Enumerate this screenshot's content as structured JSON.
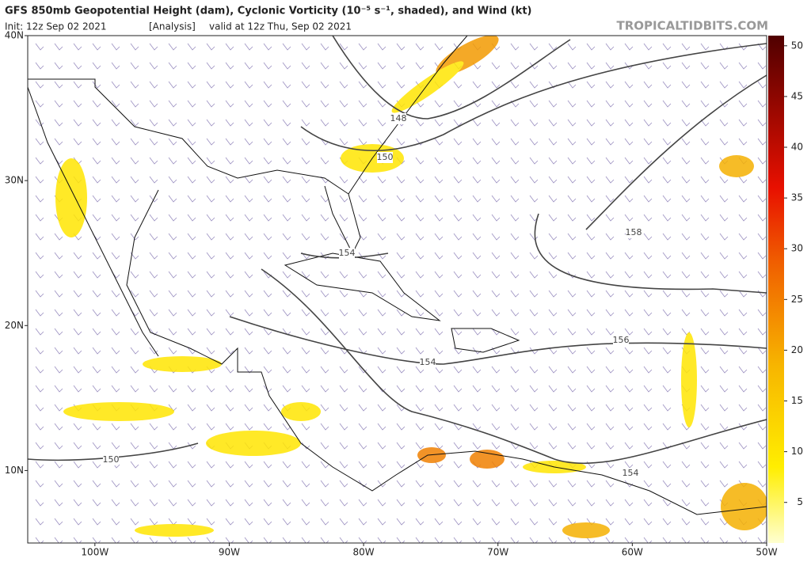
{
  "header": {
    "title": "GFS 850mb Geopotential Height (dam), Cyclonic Vorticity (10⁻⁵ s⁻¹, shaded), and Wind (kt)",
    "init": "Init: 12z Sep 02 2021",
    "run": "[Analysis]",
    "valid": "valid at 12z Thu, Sep 02 2021",
    "watermark": "TROPICALTIDBITS.COM"
  },
  "map": {
    "latlim": [
      5,
      40
    ],
    "lonlim": [
      -105,
      -50
    ],
    "lat_ticks": [
      {
        "value": 40,
        "label": "40N"
      },
      {
        "value": 30,
        "label": "30N"
      },
      {
        "value": 20,
        "label": "20N"
      },
      {
        "value": 10,
        "label": "10N"
      }
    ],
    "lon_ticks": [
      {
        "value": -100,
        "label": "100W"
      },
      {
        "value": -90,
        "label": "90W"
      },
      {
        "value": -80,
        "label": "80W"
      },
      {
        "value": -70,
        "label": "70W"
      },
      {
        "value": -60,
        "label": "60W"
      },
      {
        "value": -50,
        "label": "50W"
      }
    ],
    "contour_labels": [
      "148",
      "150",
      "154",
      "158",
      "156",
      "154",
      "150",
      "154"
    ]
  },
  "colorbar": {
    "range": [
      1,
      51
    ],
    "ticks": [
      5,
      10,
      15,
      20,
      25,
      30,
      35,
      40,
      45,
      50
    ]
  }
}
